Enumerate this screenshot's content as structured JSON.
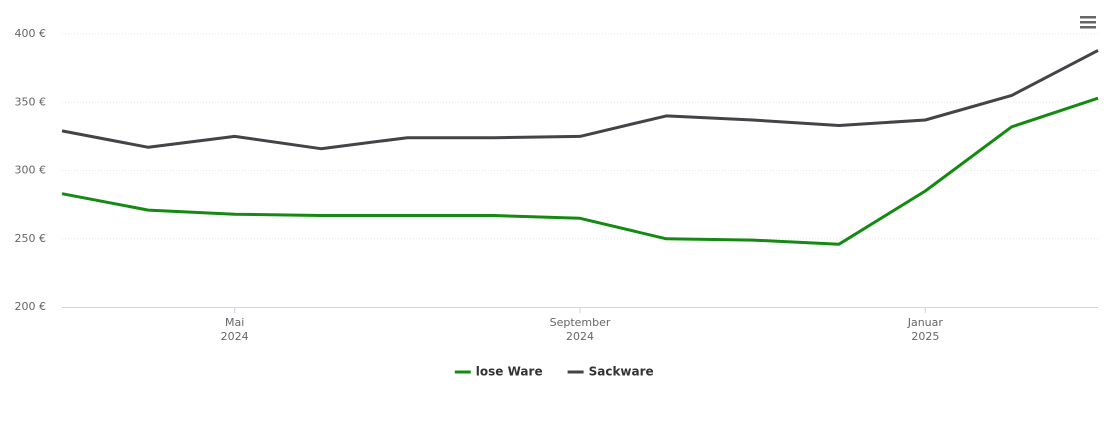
{
  "chart_data": {
    "type": "line",
    "x": [
      "2024-03",
      "2024-04",
      "2024-05",
      "2024-06",
      "2024-07",
      "2024-08",
      "2024-09",
      "2024-10",
      "2024-11",
      "2024-12",
      "2025-01",
      "2025-02",
      "2025-03"
    ],
    "series": [
      {
        "name": "lose Ware",
        "color": "#158a12",
        "values": [
          283,
          271,
          268,
          267,
          267,
          267,
          265,
          250,
          249,
          246,
          285,
          332,
          353
        ]
      },
      {
        "name": "Sackware",
        "color": "#434348",
        "values": [
          329,
          317,
          325,
          316,
          324,
          324,
          325,
          340,
          337,
          333,
          337,
          355,
          388
        ]
      }
    ],
    "xlim": [
      "2024-03",
      "2025-03"
    ],
    "xticks": [
      {
        "value": "2024-05",
        "label": [
          "Mai",
          "2024"
        ]
      },
      {
        "value": "2024-09",
        "label": [
          "September",
          "2024"
        ]
      },
      {
        "value": "2025-01",
        "label": [
          "Januar",
          "2025"
        ]
      }
    ],
    "ylim": [
      200,
      400
    ],
    "yticks": [
      {
        "value": 200,
        "label": "200 €"
      },
      {
        "value": 250,
        "label": "250 €"
      },
      {
        "value": 300,
        "label": "300 €"
      },
      {
        "value": 350,
        "label": "350 €"
      },
      {
        "value": 400,
        "label": "400 €"
      }
    ],
    "grid": true,
    "legend": "bottom"
  }
}
